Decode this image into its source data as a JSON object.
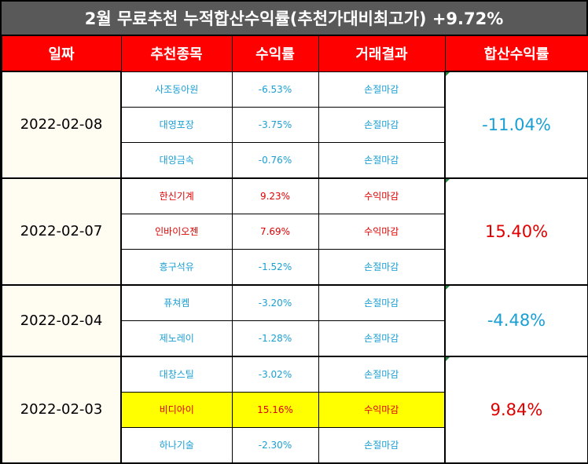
{
  "title": "2월 무료추천 누적합산수익률(추천가대비최고가) +9.72%",
  "headers": {
    "date": "일짜",
    "stock": "추천종목",
    "return": "수익률",
    "result": "거래결과",
    "total": "합산수익률"
  },
  "groups": [
    {
      "date": "2022-02-08",
      "total": "-11.04%",
      "total_sign": "neg",
      "rows": [
        {
          "stock": "사조동아원",
          "return": "-6.53%",
          "result": "손절마감",
          "sign": "neg"
        },
        {
          "stock": "대영포장",
          "return": "-3.75%",
          "result": "손절마감",
          "sign": "neg"
        },
        {
          "stock": "대양금속",
          "return": "-0.76%",
          "result": "손절마감",
          "sign": "neg"
        }
      ]
    },
    {
      "date": "2022-02-07",
      "total": "15.40%",
      "total_sign": "pos",
      "rows": [
        {
          "stock": "한신기계",
          "return": "9.23%",
          "result": "수익마감",
          "sign": "pos"
        },
        {
          "stock": "인바이오젠",
          "return": "7.69%",
          "result": "수익마감",
          "sign": "pos"
        },
        {
          "stock": "흥구석유",
          "return": "-1.52%",
          "result": "손절마감",
          "sign": "neg"
        }
      ]
    },
    {
      "date": "2022-02-04",
      "total": "-4.48%",
      "total_sign": "neg",
      "rows": [
        {
          "stock": "퓨쳐켐",
          "return": "-3.20%",
          "result": "손절마감",
          "sign": "neg"
        },
        {
          "stock": "제노레이",
          "return": "-1.28%",
          "result": "손절마감",
          "sign": "neg"
        }
      ]
    },
    {
      "date": "2022-02-03",
      "total": "9.84%",
      "total_sign": "pos",
      "rows": [
        {
          "stock": "대창스틸",
          "return": "-3.02%",
          "result": "손절마감",
          "sign": "neg"
        },
        {
          "stock": "비디아이",
          "return": "15.16%",
          "result": "수익마감",
          "sign": "pos",
          "highlight": true
        },
        {
          "stock": "하나기술",
          "return": "-2.30%",
          "result": "손절마감",
          "sign": "neg"
        }
      ]
    }
  ],
  "colors": {
    "title_bg": "#595959",
    "header_bg": "#ff0000",
    "negative": "#1a9fd4",
    "positive": "#e00000",
    "highlight": "#ffff00",
    "date_bg": "#fffcf2"
  }
}
